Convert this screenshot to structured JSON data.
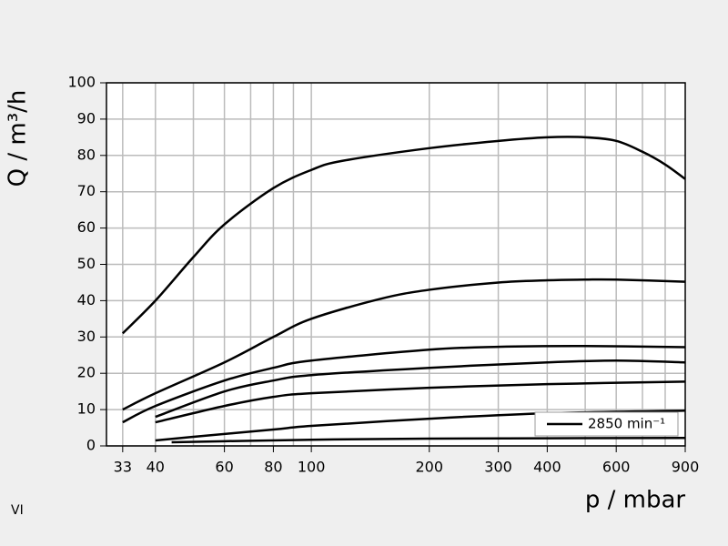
{
  "chart_data": {
    "type": "line",
    "xlabel": "p / mbar",
    "ylabel": "Q / m³/h",
    "annotation": "VI",
    "xscale": "log",
    "xlim": [
      30,
      900
    ],
    "ylim": [
      0,
      100
    ],
    "xticks": [
      33,
      40,
      60,
      80,
      100,
      200,
      300,
      400,
      600,
      900
    ],
    "yticks": [
      0,
      10,
      20,
      30,
      40,
      50,
      60,
      70,
      80,
      90,
      100
    ],
    "xgrid": [
      33,
      40,
      50,
      60,
      70,
      80,
      90,
      100,
      200,
      300,
      400,
      500,
      600,
      700,
      800
    ],
    "grid": true,
    "legend": {
      "label": "2850 min⁻¹",
      "position": "lower right",
      "color": "#000000"
    },
    "series": [
      {
        "color": "#000000",
        "x": [
          33,
          40,
          50,
          60,
          80,
          100,
          120,
          200,
          300,
          400,
          500,
          600,
          700,
          800,
          900
        ],
        "values": [
          31,
          40,
          52,
          61,
          71,
          76,
          78.5,
          82,
          84,
          85,
          85,
          84,
          81,
          77.5,
          73.5
        ]
      },
      {
        "color": "#000000",
        "x": [
          33,
          40,
          60,
          80,
          100,
          150,
          200,
          300,
          400,
          500,
          600,
          900
        ],
        "values": [
          10,
          14.5,
          23,
          30,
          35,
          40.5,
          43,
          45,
          45.6,
          45.8,
          45.8,
          45.2
        ]
      },
      {
        "color": "#000000",
        "x": [
          33,
          40,
          60,
          80,
          100,
          200,
          300,
          500,
          900
        ],
        "values": [
          6.5,
          11,
          18,
          21.5,
          23.5,
          26.5,
          27.3,
          27.5,
          27.2
        ]
      },
      {
        "color": "#000000",
        "x": [
          40,
          60,
          80,
          100,
          200,
          400,
          600,
          900
        ],
        "values": [
          8,
          15,
          18,
          19.5,
          21.5,
          23,
          23.5,
          23
        ]
      },
      {
        "color": "#000000",
        "x": [
          40,
          60,
          80,
          100,
          200,
          400,
          900
        ],
        "values": [
          6.5,
          11,
          13.5,
          14.5,
          16,
          17,
          17.7
        ]
      },
      {
        "color": "#000000",
        "x": [
          40,
          50,
          80,
          100,
          200,
          400,
          900
        ],
        "values": [
          1.5,
          2.5,
          4.5,
          5.5,
          7.5,
          9,
          9.7
        ]
      },
      {
        "color": "#000000",
        "x": [
          44,
          60,
          100,
          200,
          900
        ],
        "values": [
          1,
          1.3,
          1.7,
          2,
          2.2
        ]
      }
    ]
  }
}
